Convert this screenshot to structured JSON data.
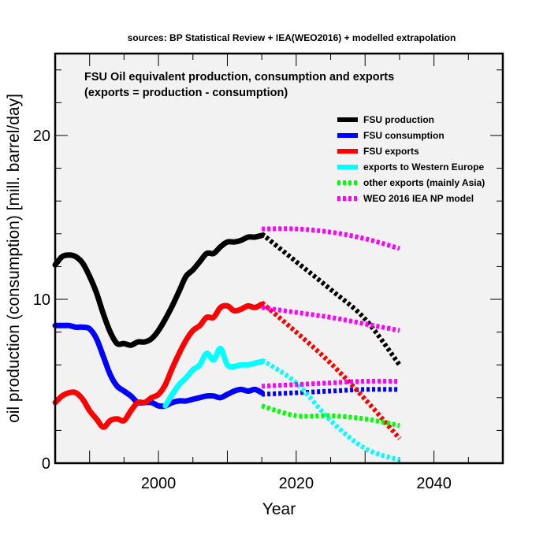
{
  "chart_data": {
    "type": "line",
    "source_note": "sources: BP Statistical Review + IEA(WEO2016) + modelled extrapolation",
    "title_line1": "FSU Oil equivalent production, consumption and exports",
    "title_line2": "(exports = production - consumption)",
    "xlabel": "Year",
    "ylabel": "oil production (consumption) [mill. barrel/day]",
    "xlim": [
      1985,
      2050
    ],
    "ylim": [
      0,
      25
    ],
    "x_ticks": [
      2000,
      2020,
      2040
    ],
    "y_ticks": [
      0,
      10,
      20
    ],
    "x_minor_step": 5,
    "y_minor_step": 2,
    "legend_position": "top-right",
    "series": [
      {
        "name": "FSU production",
        "color": "#000000",
        "historical": [
          [
            1985,
            12.1
          ],
          [
            1986,
            12.6
          ],
          [
            1987,
            12.7
          ],
          [
            1988,
            12.6
          ],
          [
            1989,
            12.2
          ],
          [
            1990,
            11.4
          ],
          [
            1991,
            10.4
          ],
          [
            1992,
            9.1
          ],
          [
            1993,
            8.0
          ],
          [
            1994,
            7.3
          ],
          [
            1995,
            7.3
          ],
          [
            1996,
            7.2
          ],
          [
            1997,
            7.4
          ],
          [
            1998,
            7.4
          ],
          [
            1999,
            7.6
          ],
          [
            2000,
            8.1
          ],
          [
            2001,
            8.8
          ],
          [
            2002,
            9.6
          ],
          [
            2003,
            10.5
          ],
          [
            2004,
            11.4
          ],
          [
            2005,
            11.8
          ],
          [
            2006,
            12.3
          ],
          [
            2007,
            12.8
          ],
          [
            2008,
            12.8
          ],
          [
            2009,
            13.2
          ],
          [
            2010,
            13.5
          ],
          [
            2011,
            13.5
          ],
          [
            2012,
            13.6
          ],
          [
            2013,
            13.8
          ],
          [
            2014,
            13.8
          ],
          [
            2015,
            13.9
          ]
        ],
        "projection": [
          [
            2015,
            14.0
          ],
          [
            2020,
            12.3
          ],
          [
            2025,
            10.6
          ],
          [
            2030,
            8.8
          ],
          [
            2035,
            6.0
          ]
        ]
      },
      {
        "name": "FSU consumption",
        "color": "#0000ff",
        "historical": [
          [
            1985,
            8.4
          ],
          [
            1986,
            8.4
          ],
          [
            1987,
            8.4
          ],
          [
            1988,
            8.3
          ],
          [
            1989,
            8.3
          ],
          [
            1990,
            8.2
          ],
          [
            1991,
            7.6
          ],
          [
            1992,
            6.5
          ],
          [
            1993,
            5.4
          ],
          [
            1994,
            4.7
          ],
          [
            1995,
            4.4
          ],
          [
            1996,
            4.1
          ],
          [
            1997,
            3.7
          ],
          [
            1998,
            3.7
          ],
          [
            1999,
            3.7
          ],
          [
            2000,
            3.5
          ],
          [
            2001,
            3.5
          ],
          [
            2002,
            3.7
          ],
          [
            2003,
            3.8
          ],
          [
            2004,
            3.8
          ],
          [
            2005,
            3.9
          ],
          [
            2006,
            4.0
          ],
          [
            2007,
            4.1
          ],
          [
            2008,
            4.1
          ],
          [
            2009,
            4.0
          ],
          [
            2010,
            4.2
          ],
          [
            2011,
            4.4
          ],
          [
            2012,
            4.5
          ],
          [
            2013,
            4.4
          ],
          [
            2014,
            4.5
          ],
          [
            2015,
            4.3
          ]
        ],
        "projection": [
          [
            2015,
            4.2
          ],
          [
            2020,
            4.3
          ],
          [
            2025,
            4.4
          ],
          [
            2030,
            4.5
          ],
          [
            2035,
            4.5
          ]
        ]
      },
      {
        "name": "FSU exports",
        "color": "#ff0000",
        "historical": [
          [
            1985,
            3.7
          ],
          [
            1986,
            4.1
          ],
          [
            1987,
            4.3
          ],
          [
            1988,
            4.3
          ],
          [
            1989,
            3.9
          ],
          [
            1990,
            3.2
          ],
          [
            1991,
            2.7
          ],
          [
            1992,
            2.2
          ],
          [
            1993,
            2.6
          ],
          [
            1994,
            2.7
          ],
          [
            1995,
            2.6
          ],
          [
            1996,
            3.2
          ],
          [
            1997,
            3.7
          ],
          [
            1998,
            3.7
          ],
          [
            1999,
            4.0
          ],
          [
            2000,
            4.2
          ],
          [
            2001,
            4.8
          ],
          [
            2002,
            5.8
          ],
          [
            2003,
            6.7
          ],
          [
            2004,
            7.5
          ],
          [
            2005,
            8.1
          ],
          [
            2006,
            8.4
          ],
          [
            2007,
            8.9
          ],
          [
            2008,
            8.9
          ],
          [
            2009,
            9.5
          ],
          [
            2010,
            9.6
          ],
          [
            2011,
            9.3
          ],
          [
            2012,
            9.4
          ],
          [
            2013,
            9.6
          ],
          [
            2014,
            9.5
          ],
          [
            2015,
            9.7
          ]
        ],
        "projection": [
          [
            2015,
            9.8
          ],
          [
            2020,
            8.0
          ],
          [
            2025,
            6.1
          ],
          [
            2030,
            3.9
          ],
          [
            2035,
            1.5
          ]
        ]
      },
      {
        "name": "exports to Western Europe",
        "color": "#00ffff",
        "historical": [
          [
            2001,
            3.5
          ],
          [
            2002,
            4.2
          ],
          [
            2003,
            4.8
          ],
          [
            2004,
            5.2
          ],
          [
            2005,
            5.7
          ],
          [
            2006,
            6.0
          ],
          [
            2007,
            6.7
          ],
          [
            2008,
            6.3
          ],
          [
            2009,
            7.0
          ],
          [
            2010,
            6.0
          ],
          [
            2011,
            5.9
          ],
          [
            2012,
            6.0
          ],
          [
            2013,
            6.0
          ],
          [
            2014,
            6.1
          ],
          [
            2015,
            6.2
          ]
        ],
        "projection": [
          [
            2015,
            6.3
          ],
          [
            2020,
            4.9
          ],
          [
            2025,
            2.6
          ],
          [
            2030,
            0.9
          ],
          [
            2035,
            0.2
          ]
        ]
      },
      {
        "name": "other exports (mainly Asia)",
        "color": "#00ff00",
        "historical": [],
        "projection": [
          [
            2015,
            3.5
          ],
          [
            2020,
            2.9
          ],
          [
            2025,
            2.9
          ],
          [
            2030,
            2.7
          ],
          [
            2035,
            2.3
          ]
        ]
      },
      {
        "name": "WEO 2016 IEA NP model",
        "color": "#ff00ff",
        "historical": [],
        "projection_sets": [
          [
            [
              2015,
              14.3
            ],
            [
              2020,
              14.3
            ],
            [
              2025,
              14.1
            ],
            [
              2030,
              13.7
            ],
            [
              2035,
              13.1
            ]
          ],
          [
            [
              2015,
              9.5
            ],
            [
              2020,
              9.2
            ],
            [
              2025,
              8.9
            ],
            [
              2030,
              8.5
            ],
            [
              2035,
              8.1
            ]
          ],
          [
            [
              2015,
              4.7
            ],
            [
              2020,
              4.8
            ],
            [
              2025,
              4.9
            ],
            [
              2030,
              5.0
            ],
            [
              2035,
              5.0
            ]
          ]
        ]
      }
    ]
  }
}
